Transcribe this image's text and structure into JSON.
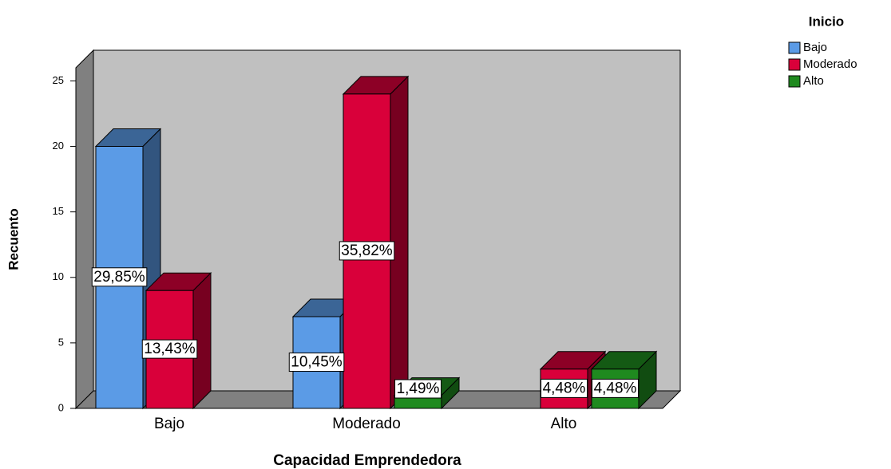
{
  "chart_data": {
    "type": "bar3d",
    "x_label": "Capacidad Emprendedora",
    "y_label": "Recuento",
    "categories": [
      "Bajo",
      "Moderado",
      "Alto"
    ],
    "legend_title": "Inicio",
    "series": [
      {
        "name": "Bajo",
        "color": "#5b9be6",
        "values": [
          20,
          7,
          null
        ],
        "value_labels": [
          "29,85%",
          "10,45%",
          null
        ]
      },
      {
        "name": "Moderado",
        "color": "#d9003a",
        "values": [
          9,
          24,
          3
        ],
        "value_labels": [
          "13,43%",
          "35,82%",
          "4,48%"
        ]
      },
      {
        "name": "Alto",
        "color": "#1f8a1f",
        "values": [
          null,
          1,
          3
        ],
        "value_labels": [
          null,
          "1,49%",
          "4,48%"
        ]
      }
    ],
    "ylim": [
      0,
      26
    ],
    "yticks": [
      0,
      5,
      10,
      15,
      20,
      25
    ],
    "legend": "top-right"
  }
}
